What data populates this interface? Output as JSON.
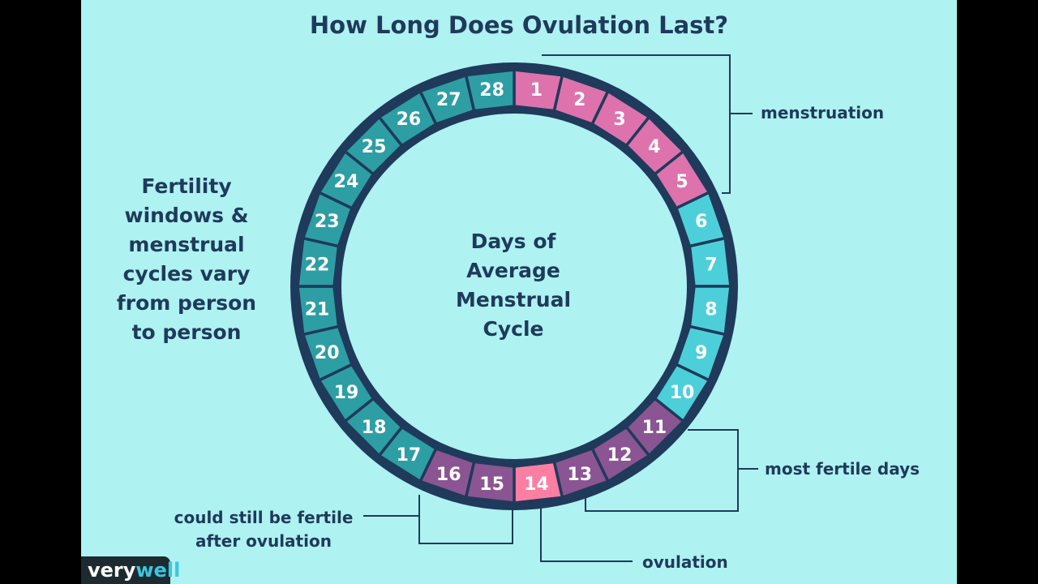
{
  "title": "How Long Does Ovulation Last?",
  "left_note": "Fertility windows & menstrual cycles vary from person to person",
  "center_label": "Days of Average Menstrual Cycle",
  "labels": {
    "menstruation": "menstruation",
    "most_fertile": "most fertile days",
    "ovulation": "ovulation",
    "after_ovulation": "could still be fertile after ovulation"
  },
  "logo": {
    "part1": "very",
    "part2": "well"
  },
  "colors": {
    "background": "#aef2f2",
    "ring": "#1f3a5a",
    "menstruation": "#dd72ad",
    "follicular": "#4dcfda",
    "fertile": "#8a5592",
    "ovulation": "#fc7fa3",
    "luteal": "#2d9ea4"
  },
  "days": [
    {
      "day": 1,
      "phase": "menstruation"
    },
    {
      "day": 2,
      "phase": "menstruation"
    },
    {
      "day": 3,
      "phase": "menstruation"
    },
    {
      "day": 4,
      "phase": "menstruation"
    },
    {
      "day": 5,
      "phase": "menstruation"
    },
    {
      "day": 6,
      "phase": "follicular"
    },
    {
      "day": 7,
      "phase": "follicular"
    },
    {
      "day": 8,
      "phase": "follicular"
    },
    {
      "day": 9,
      "phase": "follicular"
    },
    {
      "day": 10,
      "phase": "follicular"
    },
    {
      "day": 11,
      "phase": "fertile"
    },
    {
      "day": 12,
      "phase": "fertile"
    },
    {
      "day": 13,
      "phase": "fertile"
    },
    {
      "day": 14,
      "phase": "ovulation"
    },
    {
      "day": 15,
      "phase": "fertile"
    },
    {
      "day": 16,
      "phase": "fertile"
    },
    {
      "day": 17,
      "phase": "luteal"
    },
    {
      "day": 18,
      "phase": "luteal"
    },
    {
      "day": 19,
      "phase": "luteal"
    },
    {
      "day": 20,
      "phase": "luteal"
    },
    {
      "day": 21,
      "phase": "luteal"
    },
    {
      "day": 22,
      "phase": "luteal"
    },
    {
      "day": 23,
      "phase": "luteal"
    },
    {
      "day": 24,
      "phase": "luteal"
    },
    {
      "day": 25,
      "phase": "luteal"
    },
    {
      "day": 26,
      "phase": "luteal"
    },
    {
      "day": 27,
      "phase": "luteal"
    },
    {
      "day": 28,
      "phase": "luteal"
    }
  ]
}
